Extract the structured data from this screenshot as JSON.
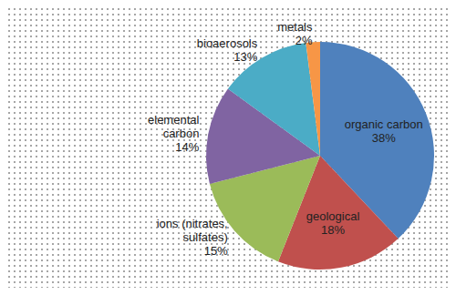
{
  "chart_data": {
    "type": "pie",
    "categories": [
      "organic carbon",
      "geological",
      "ions (nitrates, sulfates)",
      "elemental carbon",
      "bioaerosols",
      "metals"
    ],
    "values": [
      38,
      18,
      15,
      14,
      13,
      2
    ],
    "value_labels": [
      "38%",
      "18%",
      "15%",
      "14%",
      "13%",
      "2%"
    ],
    "colors": [
      "#4f81bd",
      "#c0504d",
      "#9bbb59",
      "#8064a2",
      "#4bacc6",
      "#f79646"
    ],
    "data_labels": true
  }
}
